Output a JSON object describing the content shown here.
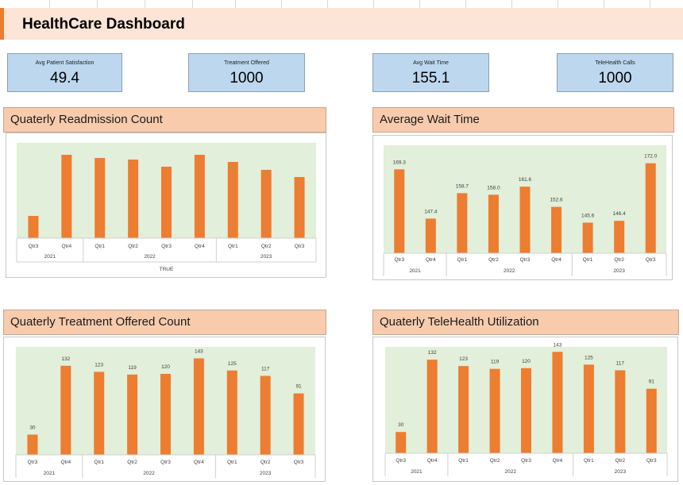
{
  "header": {
    "title": "HealthCare Dashboard"
  },
  "kpis": [
    {
      "label": "Avg Patient Satisfaction",
      "value": "49.4"
    },
    {
      "label": "Treatment Offered",
      "value": "1000"
    },
    {
      "label": "Avg Wait Time",
      "value": "155.1"
    },
    {
      "label": "TeleHealth Calls",
      "value": "1000"
    }
  ],
  "colors": {
    "bar": "#ed7d31",
    "plot_area": "#e2efda",
    "header_bg": "#fce4d6",
    "title_bg": "#f8cbad",
    "kpi_bg": "#bdd7ee"
  },
  "chart_data": [
    {
      "type": "bar",
      "title": "Quaterly Readmission Count",
      "categories": [
        "Qtr3",
        "Qtr4",
        "Qtr1",
        "Qtr2",
        "Qtr3",
        "Qtr4",
        "Qtr1",
        "Qtr2",
        "Qtr3"
      ],
      "groups": [
        {
          "label": "2021",
          "count": 2
        },
        {
          "label": "2022",
          "count": 4
        },
        {
          "label": "2023",
          "count": 3
        }
      ],
      "values": [
        28,
        105,
        101,
        99,
        90,
        105,
        96,
        86,
        77
      ],
      "show_data_labels": false,
      "footer_label": "TRUE",
      "ylim": [
        0,
        120
      ]
    },
    {
      "type": "bar",
      "title": "Average Wait Time",
      "categories": [
        "Qtr3",
        "Qtr4",
        "Qtr1",
        "Qtr2",
        "Qtr3",
        "Qtr4",
        "Qtr1",
        "Qtr2",
        "Qtr3"
      ],
      "groups": [
        {
          "label": "2021",
          "count": 2
        },
        {
          "label": "2022",
          "count": 4
        },
        {
          "label": "2023",
          "count": 3
        }
      ],
      "values": [
        169.3,
        147.4,
        158.7,
        158.0,
        161.6,
        152.6,
        145.6,
        146.4,
        172.0
      ],
      "data_labels": [
        "169.3",
        "147.4",
        "158.7",
        "158.0",
        "161.6",
        "152.6",
        "145.6",
        "146.4",
        "172.0"
      ],
      "show_data_labels": true,
      "ylim": [
        132,
        180
      ]
    },
    {
      "type": "bar",
      "title": "Quaterly Treatment Offered Count",
      "categories": [
        "Qtr3",
        "Qtr4",
        "Qtr1",
        "Qtr2",
        "Qtr3",
        "Qtr4",
        "Qtr1",
        "Qtr2",
        "Qtr3"
      ],
      "groups": [
        {
          "label": "2021",
          "count": 2
        },
        {
          "label": "2022",
          "count": 4
        },
        {
          "label": "2023",
          "count": 3
        }
      ],
      "values": [
        30,
        132,
        123,
        119,
        120,
        143,
        125,
        117,
        91
      ],
      "data_labels": [
        "30",
        "132",
        "123",
        "119",
        "120",
        "143",
        "125",
        "117",
        "91"
      ],
      "show_data_labels": true,
      "ylim": [
        0,
        160
      ]
    },
    {
      "type": "bar",
      "title": "Quaterly TeleHealth Utilization",
      "categories": [
        "Qtr3",
        "Qtr4",
        "Qtr1",
        "Qtr2",
        "Qtr3",
        "Qtr4",
        "Qtr1",
        "Qtr2",
        "Qtr3"
      ],
      "groups": [
        {
          "label": "2021",
          "count": 2
        },
        {
          "label": "2022",
          "count": 4
        },
        {
          "label": "2023",
          "count": 3
        }
      ],
      "values": [
        30,
        132,
        123,
        119,
        120,
        143,
        125,
        117,
        91
      ],
      "data_labels": [
        "30",
        "132",
        "123",
        "119",
        "120",
        "143",
        "125",
        "117",
        "91"
      ],
      "show_data_labels": true,
      "ylim": [
        0,
        150
      ]
    }
  ]
}
